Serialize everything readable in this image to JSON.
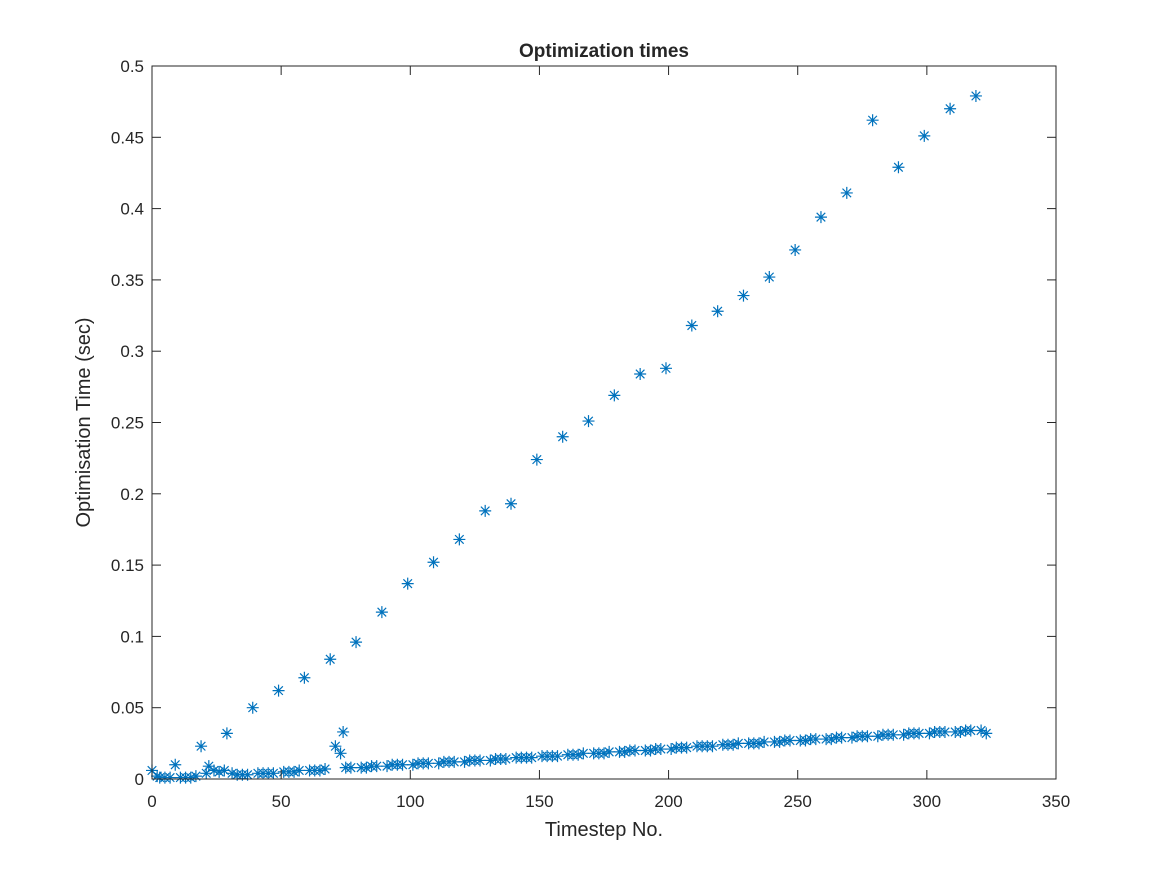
{
  "chart_data": {
    "type": "scatter",
    "title": "Optimization times",
    "xlabel": "Timestep No.",
    "ylabel": "Optimisation Time (sec)",
    "xlim": [
      0,
      350
    ],
    "ylim": [
      0,
      0.5
    ],
    "xticks": [
      0,
      50,
      100,
      150,
      200,
      250,
      300,
      350
    ],
    "yticks": [
      0,
      0.05,
      0.1,
      0.15,
      0.2,
      0.25,
      0.3,
      0.35,
      0.4,
      0.45,
      0.5
    ],
    "xtick_labels": [
      "0",
      "50",
      "100",
      "150",
      "200",
      "250",
      "300",
      "350"
    ],
    "ytick_labels": [
      "0",
      "0.05",
      "0.1",
      "0.15",
      "0.2",
      "0.25",
      "0.3",
      "0.35",
      "0.4",
      "0.45",
      "0.5"
    ],
    "grid": false,
    "box": true,
    "marker": "asterisk",
    "color": "#0072BD",
    "series": [
      {
        "points": [
          [
            0,
            0.006
          ],
          [
            2,
            0.002
          ],
          [
            3,
            0.001
          ],
          [
            5,
            0.001
          ],
          [
            7,
            0.001
          ],
          [
            9,
            0.01
          ],
          [
            11,
            0.001
          ],
          [
            13,
            0.001
          ],
          [
            15,
            0.001
          ],
          [
            17,
            0.002
          ],
          [
            19,
            0.023
          ],
          [
            21,
            0.004
          ],
          [
            22,
            0.009
          ],
          [
            24,
            0.006
          ],
          [
            26,
            0.005
          ],
          [
            28,
            0.006
          ],
          [
            29,
            0.032
          ],
          [
            31,
            0.004
          ],
          [
            33,
            0.003
          ],
          [
            35,
            0.003
          ],
          [
            37,
            0.003
          ],
          [
            39,
            0.05
          ],
          [
            41,
            0.004
          ],
          [
            43,
            0.004
          ],
          [
            45,
            0.004
          ],
          [
            47,
            0.004
          ],
          [
            49,
            0.062
          ],
          [
            51,
            0.005
          ],
          [
            53,
            0.005
          ],
          [
            55,
            0.005
          ],
          [
            57,
            0.006
          ],
          [
            59,
            0.071
          ],
          [
            61,
            0.006
          ],
          [
            63,
            0.006
          ],
          [
            65,
            0.006
          ],
          [
            67,
            0.007
          ],
          [
            69,
            0.084
          ],
          [
            71,
            0.023
          ],
          [
            73,
            0.018
          ],
          [
            74,
            0.033
          ],
          [
            75,
            0.008
          ],
          [
            77,
            0.008
          ],
          [
            79,
            0.096
          ],
          [
            81,
            0.008
          ],
          [
            83,
            0.008
          ],
          [
            85,
            0.009
          ],
          [
            87,
            0.009
          ],
          [
            89,
            0.117
          ],
          [
            91,
            0.009
          ],
          [
            93,
            0.01
          ],
          [
            95,
            0.01
          ],
          [
            97,
            0.01
          ],
          [
            99,
            0.137
          ],
          [
            101,
            0.01
          ],
          [
            103,
            0.011
          ],
          [
            105,
            0.011
          ],
          [
            107,
            0.011
          ],
          [
            109,
            0.152
          ],
          [
            111,
            0.011
          ],
          [
            113,
            0.012
          ],
          [
            115,
            0.012
          ],
          [
            117,
            0.012
          ],
          [
            119,
            0.168
          ],
          [
            121,
            0.012
          ],
          [
            123,
            0.013
          ],
          [
            125,
            0.013
          ],
          [
            127,
            0.013
          ],
          [
            129,
            0.188
          ],
          [
            131,
            0.013
          ],
          [
            133,
            0.014
          ],
          [
            135,
            0.014
          ],
          [
            137,
            0.014
          ],
          [
            139,
            0.193
          ],
          [
            141,
            0.015
          ],
          [
            143,
            0.015
          ],
          [
            145,
            0.015
          ],
          [
            147,
            0.015
          ],
          [
            149,
            0.224
          ],
          [
            151,
            0.016
          ],
          [
            153,
            0.016
          ],
          [
            155,
            0.016
          ],
          [
            157,
            0.016
          ],
          [
            159,
            0.24
          ],
          [
            161,
            0.017
          ],
          [
            163,
            0.017
          ],
          [
            165,
            0.017
          ],
          [
            167,
            0.018
          ],
          [
            169,
            0.251
          ],
          [
            171,
            0.018
          ],
          [
            173,
            0.018
          ],
          [
            175,
            0.018
          ],
          [
            177,
            0.019
          ],
          [
            179,
            0.269
          ],
          [
            181,
            0.019
          ],
          [
            183,
            0.019
          ],
          [
            185,
            0.02
          ],
          [
            187,
            0.02
          ],
          [
            189,
            0.284
          ],
          [
            191,
            0.02
          ],
          [
            193,
            0.02
          ],
          [
            195,
            0.021
          ],
          [
            197,
            0.021
          ],
          [
            199,
            0.288
          ],
          [
            201,
            0.021
          ],
          [
            203,
            0.022
          ],
          [
            205,
            0.022
          ],
          [
            207,
            0.022
          ],
          [
            209,
            0.318
          ],
          [
            211,
            0.023
          ],
          [
            213,
            0.023
          ],
          [
            215,
            0.023
          ],
          [
            217,
            0.023
          ],
          [
            219,
            0.328
          ],
          [
            221,
            0.024
          ],
          [
            223,
            0.024
          ],
          [
            225,
            0.024
          ],
          [
            227,
            0.025
          ],
          [
            229,
            0.339
          ],
          [
            231,
            0.025
          ],
          [
            233,
            0.025
          ],
          [
            235,
            0.025
          ],
          [
            237,
            0.026
          ],
          [
            239,
            0.352
          ],
          [
            241,
            0.026
          ],
          [
            243,
            0.026
          ],
          [
            245,
            0.027
          ],
          [
            247,
            0.027
          ],
          [
            249,
            0.371
          ],
          [
            251,
            0.027
          ],
          [
            253,
            0.027
          ],
          [
            255,
            0.028
          ],
          [
            257,
            0.028
          ],
          [
            259,
            0.394
          ],
          [
            261,
            0.028
          ],
          [
            263,
            0.028
          ],
          [
            265,
            0.029
          ],
          [
            267,
            0.029
          ],
          [
            269,
            0.411
          ],
          [
            271,
            0.029
          ],
          [
            273,
            0.03
          ],
          [
            275,
            0.03
          ],
          [
            277,
            0.03
          ],
          [
            279,
            0.462
          ],
          [
            281,
            0.03
          ],
          [
            283,
            0.031
          ],
          [
            285,
            0.031
          ],
          [
            287,
            0.031
          ],
          [
            289,
            0.429
          ],
          [
            291,
            0.031
          ],
          [
            293,
            0.032
          ],
          [
            295,
            0.032
          ],
          [
            297,
            0.032
          ],
          [
            299,
            0.451
          ],
          [
            301,
            0.032
          ],
          [
            303,
            0.033
          ],
          [
            305,
            0.033
          ],
          [
            307,
            0.033
          ],
          [
            309,
            0.47
          ],
          [
            311,
            0.033
          ],
          [
            313,
            0.033
          ],
          [
            315,
            0.034
          ],
          [
            317,
            0.034
          ],
          [
            319,
            0.479
          ],
          [
            321,
            0.034
          ],
          [
            323,
            0.032
          ]
        ]
      }
    ]
  }
}
